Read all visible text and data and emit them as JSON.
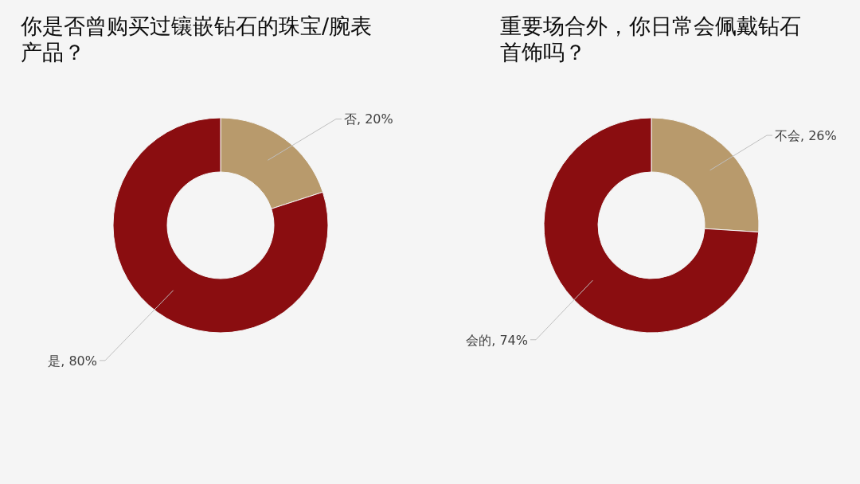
{
  "chart_data": [
    {
      "type": "donut",
      "title": "你是否曾购买过镶嵌钻石的珠宝/腕表产品？",
      "categories": [
        "否",
        "是"
      ],
      "values": [
        20,
        80
      ],
      "colors": [
        "#b89a6c",
        "#8a0d10"
      ],
      "value_labels": [
        ", 20%",
        ", 80%"
      ]
    },
    {
      "type": "donut",
      "title": "重要场合外，你日常会佩戴钻石首饰吗？",
      "categories": [
        "不会",
        "会的"
      ],
      "values": [
        26,
        74
      ],
      "colors": [
        "#b89a6c",
        "#8a0d10"
      ],
      "value_labels": [
        ", 26%",
        ", 74%"
      ]
    }
  ]
}
